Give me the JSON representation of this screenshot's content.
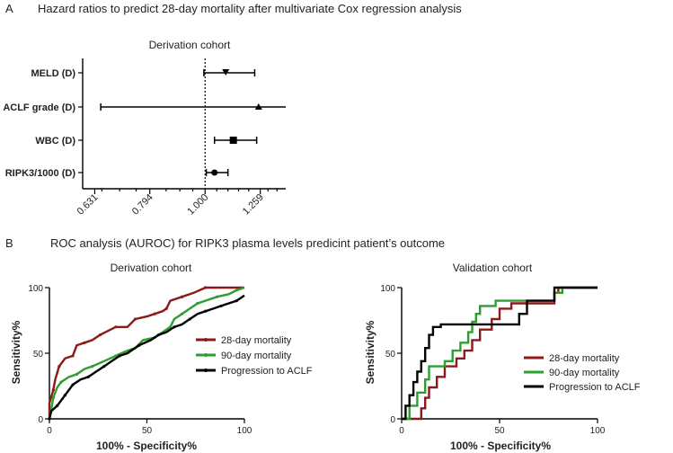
{
  "panelA": {
    "letter": "A",
    "heading": "Hazard ratios to predict 28-day mortality after multivariate Cox regression analysis"
  },
  "panelB": {
    "letter": "B",
    "heading": "ROC analysis (AUROC) for RIPK3 plasma levels predicint patient’s outcome"
  },
  "colors": {
    "mortality28": "#8b1a1a",
    "mortality90": "#2e9e2e",
    "progression": "#000000"
  },
  "chart_data": [
    {
      "type": "forest",
      "title": "Derivation cohort",
      "xscale": "log",
      "xlim": [
        0.6,
        1.4
      ],
      "xticks": [
        0.631,
        0.794,
        1.0,
        1.259
      ],
      "xtick_labels": [
        "0.631",
        "0.794",
        "1.000",
        "1.259"
      ],
      "reference_line": 1.0,
      "rows": [
        {
          "label": "MELD (D)",
          "hr": 1.09,
          "lo": 0.995,
          "hi": 1.23,
          "marker": "triangle-down"
        },
        {
          "label": "ACLF grade (D)",
          "hr": 1.25,
          "lo": 0.647,
          "hi": 1.4,
          "marker": "triangle-up"
        },
        {
          "label": "WBC (D)",
          "hr": 1.125,
          "lo": 1.04,
          "hi": 1.24,
          "marker": "square"
        },
        {
          "label": "RIPK3/1000 (D)",
          "hr": 1.04,
          "lo": 1.005,
          "hi": 1.1,
          "marker": "circle"
        }
      ]
    },
    {
      "type": "line",
      "title": "Derivation cohort",
      "xlabel": "100% - Specificity%",
      "ylabel": "Sensitivity%",
      "xlim": [
        0,
        100
      ],
      "ylim": [
        0,
        100
      ],
      "xticks": [
        0,
        50,
        100
      ],
      "yticks": [
        0,
        50,
        100
      ],
      "legend_position": "right",
      "series": [
        {
          "name": "28-day mortality",
          "color_key": "mortality28",
          "points": [
            [
              0,
              0
            ],
            [
              0,
              12
            ],
            [
              2,
              22
            ],
            [
              3,
              30
            ],
            [
              5,
              40
            ],
            [
              8,
              46
            ],
            [
              12,
              48
            ],
            [
              14,
              56
            ],
            [
              18,
              58
            ],
            [
              22,
              60
            ],
            [
              26,
              64
            ],
            [
              30,
              67
            ],
            [
              34,
              70
            ],
            [
              40,
              70
            ],
            [
              44,
              76
            ],
            [
              50,
              78
            ],
            [
              54,
              80
            ],
            [
              58,
              82
            ],
            [
              60,
              84
            ],
            [
              62,
              90
            ],
            [
              68,
              93
            ],
            [
              74,
              96
            ],
            [
              80,
              100
            ],
            [
              100,
              100
            ]
          ]
        },
        {
          "name": "90-day mortality",
          "color_key": "mortality90",
          "points": [
            [
              0,
              0
            ],
            [
              1,
              8
            ],
            [
              2,
              16
            ],
            [
              4,
              24
            ],
            [
              6,
              28
            ],
            [
              10,
              32
            ],
            [
              14,
              34
            ],
            [
              18,
              38
            ],
            [
              22,
              40
            ],
            [
              28,
              44
            ],
            [
              34,
              48
            ],
            [
              40,
              52
            ],
            [
              44,
              54
            ],
            [
              48,
              60
            ],
            [
              54,
              62
            ],
            [
              58,
              66
            ],
            [
              62,
              70
            ],
            [
              64,
              76
            ],
            [
              68,
              80
            ],
            [
              72,
              84
            ],
            [
              76,
              88
            ],
            [
              80,
              90
            ],
            [
              86,
              93
            ],
            [
              92,
              95
            ],
            [
              96,
              98
            ],
            [
              100,
              100
            ]
          ]
        },
        {
          "name": "Progression to ACLF",
          "color_key": "progression",
          "points": [
            [
              0,
              0
            ],
            [
              1,
              6
            ],
            [
              4,
              10
            ],
            [
              6,
              14
            ],
            [
              8,
              18
            ],
            [
              10,
              22
            ],
            [
              12,
              26
            ],
            [
              16,
              30
            ],
            [
              20,
              32
            ],
            [
              24,
              36
            ],
            [
              28,
              40
            ],
            [
              32,
              44
            ],
            [
              36,
              48
            ],
            [
              40,
              50
            ],
            [
              46,
              56
            ],
            [
              52,
              60
            ],
            [
              56,
              64
            ],
            [
              60,
              66
            ],
            [
              64,
              70
            ],
            [
              68,
              72
            ],
            [
              72,
              76
            ],
            [
              76,
              80
            ],
            [
              80,
              82
            ],
            [
              84,
              84
            ],
            [
              88,
              86
            ],
            [
              92,
              88
            ],
            [
              96,
              90
            ],
            [
              100,
              94
            ]
          ]
        }
      ]
    },
    {
      "type": "line",
      "title": "Validation cohort",
      "xlabel": "100% - Specificity%",
      "ylabel": "Sensitivity%",
      "xlim": [
        0,
        100
      ],
      "ylim": [
        0,
        100
      ],
      "xticks": [
        0,
        50,
        100
      ],
      "yticks": [
        0,
        50,
        100
      ],
      "legend_position": "right",
      "series": [
        {
          "name": "28-day mortality",
          "color_key": "mortality28",
          "points": [
            [
              0,
              0
            ],
            [
              10,
              0
            ],
            [
              10,
              8
            ],
            [
              12,
              8
            ],
            [
              12,
              16
            ],
            [
              14,
              16
            ],
            [
              14,
              24
            ],
            [
              18,
              24
            ],
            [
              18,
              32
            ],
            [
              22,
              32
            ],
            [
              22,
              40
            ],
            [
              28,
              40
            ],
            [
              28,
              46
            ],
            [
              32,
              46
            ],
            [
              32,
              52
            ],
            [
              36,
              52
            ],
            [
              36,
              60
            ],
            [
              40,
              60
            ],
            [
              40,
              68
            ],
            [
              46,
              68
            ],
            [
              46,
              76
            ],
            [
              50,
              76
            ],
            [
              50,
              84
            ],
            [
              56,
              84
            ],
            [
              56,
              88
            ],
            [
              78,
              88
            ],
            [
              78,
              96
            ],
            [
              80,
              96
            ],
            [
              80,
              100
            ],
            [
              100,
              100
            ]
          ]
        },
        {
          "name": "90-day mortality",
          "color_key": "mortality90",
          "points": [
            [
              0,
              0
            ],
            [
              4,
              0
            ],
            [
              4,
              10
            ],
            [
              8,
              10
            ],
            [
              8,
              20
            ],
            [
              12,
              20
            ],
            [
              12,
              30
            ],
            [
              14,
              30
            ],
            [
              14,
              40
            ],
            [
              22,
              40
            ],
            [
              22,
              44
            ],
            [
              26,
              44
            ],
            [
              26,
              52
            ],
            [
              30,
              52
            ],
            [
              30,
              58
            ],
            [
              34,
              58
            ],
            [
              34,
              66
            ],
            [
              36,
              66
            ],
            [
              36,
              74
            ],
            [
              38,
              74
            ],
            [
              38,
              80
            ],
            [
              40,
              80
            ],
            [
              40,
              86
            ],
            [
              48,
              86
            ],
            [
              48,
              90
            ],
            [
              78,
              90
            ],
            [
              78,
              96
            ],
            [
              82,
              96
            ],
            [
              82,
              100
            ],
            [
              100,
              100
            ]
          ]
        },
        {
          "name": "Progression to ACLF",
          "color_key": "progression",
          "points": [
            [
              0,
              0
            ],
            [
              2,
              0
            ],
            [
              2,
              10
            ],
            [
              4,
              10
            ],
            [
              4,
              18
            ],
            [
              6,
              18
            ],
            [
              6,
              28
            ],
            [
              8,
              28
            ],
            [
              8,
              36
            ],
            [
              10,
              36
            ],
            [
              10,
              44
            ],
            [
              12,
              44
            ],
            [
              12,
              54
            ],
            [
              14,
              54
            ],
            [
              14,
              64
            ],
            [
              16,
              64
            ],
            [
              16,
              70
            ],
            [
              20,
              70
            ],
            [
              20,
              72
            ],
            [
              60,
              72
            ],
            [
              60,
              80
            ],
            [
              64,
              80
            ],
            [
              64,
              90
            ],
            [
              78,
              90
            ],
            [
              78,
              100
            ],
            [
              100,
              100
            ]
          ]
        }
      ]
    }
  ]
}
